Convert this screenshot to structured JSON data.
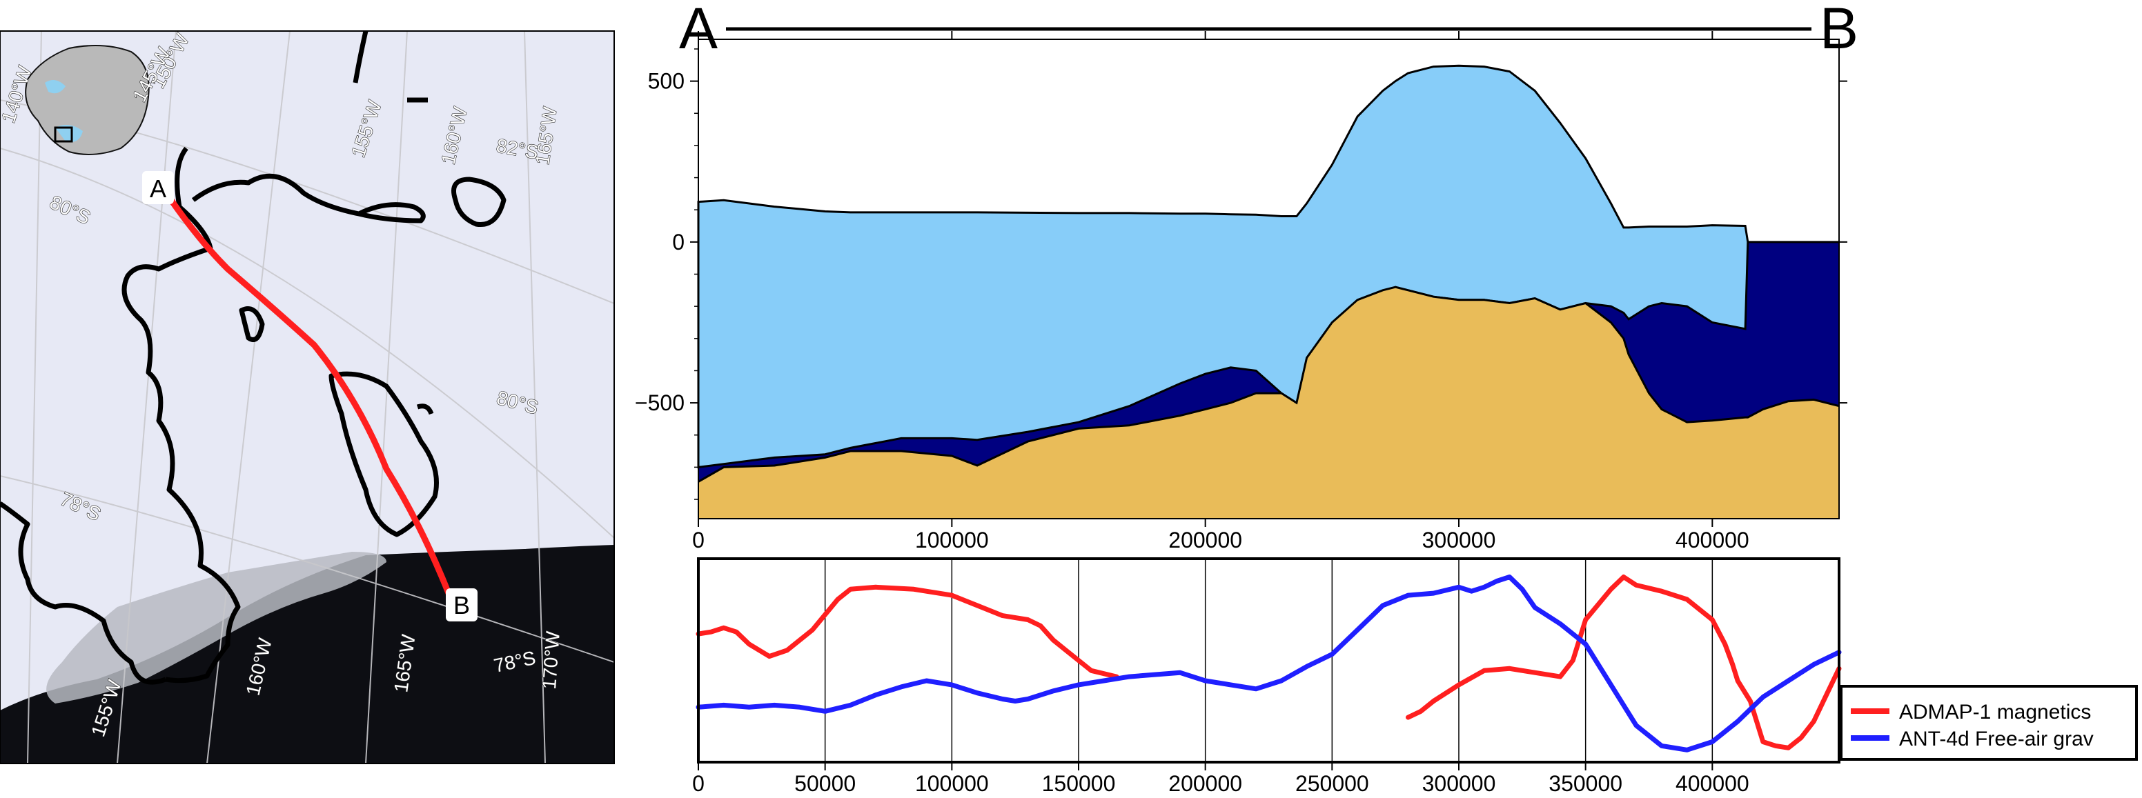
{
  "map": {
    "point_a": "A",
    "point_b": "B",
    "lon_labels": [
      "140°W",
      "145°W",
      "150°W",
      "155°W",
      "160°W",
      "165°W",
      "155°W",
      "160°W",
      "165°W",
      "170°W"
    ],
    "lat_labels": [
      "80°S",
      "80°S",
      "78°S",
      "78°S",
      "82°S"
    ],
    "colors": {
      "ice": "#e7e9f5",
      "ocean": "#0e0f14",
      "profile_line": "#ff1f1f",
      "grounding_line": "#000000",
      "continent": "#b9b9b9",
      "shelf": "#8fd0f0"
    }
  },
  "chart_data": [
    {
      "type": "area",
      "start_label": "A",
      "end_label": "B",
      "x_ticks": [
        0,
        100000,
        200000,
        300000,
        400000
      ],
      "y_ticks": [
        500,
        0,
        -500
      ],
      "xlim": [
        0,
        450000
      ],
      "ylim": [
        -860,
        630
      ],
      "layer_colors": {
        "ice": "#87cdf9",
        "water": "#000080",
        "rock": "#e9bc59"
      },
      "x": [
        0,
        10000,
        30000,
        50000,
        60000,
        80000,
        100000,
        110000,
        130000,
        150000,
        170000,
        190000,
        200000,
        210000,
        220000,
        230000,
        236000,
        240000,
        250000,
        260000,
        270000,
        275000,
        280000,
        290000,
        300000,
        310000,
        320000,
        330000,
        340000,
        350000,
        360000,
        365000,
        367000,
        375000,
        380000,
        390000,
        400000,
        413000,
        414000,
        420000,
        430000,
        440000,
        450000
      ],
      "ice_surface": [
        125,
        130,
        110,
        95,
        92,
        92,
        92,
        92,
        91,
        90,
        90,
        88,
        88,
        86,
        85,
        80,
        80,
        120,
        240,
        390,
        470,
        500,
        525,
        545,
        548,
        545,
        530,
        470,
        370,
        260,
        120,
        45,
        45,
        48,
        48,
        48,
        52,
        50,
        0,
        0,
        0,
        0,
        0
      ],
      "ice_base": [
        -700,
        -690,
        -670,
        -660,
        -640,
        -610,
        -610,
        -615,
        -590,
        -560,
        -510,
        -440,
        -410,
        -390,
        -400,
        -470,
        -500,
        -400,
        -280,
        -200,
        -170,
        -140,
        -150,
        -170,
        -180,
        -180,
        -190,
        -175,
        -210,
        -190,
        -200,
        -220,
        -240,
        -200,
        -190,
        -200,
        -250,
        -270,
        0,
        0,
        0,
        0,
        0
      ],
      "bed": [
        -745,
        -700,
        -695,
        -670,
        -650,
        -650,
        -665,
        -695,
        -620,
        -580,
        -570,
        -540,
        -520,
        -500,
        -470,
        -470,
        -500,
        -360,
        -250,
        -180,
        -150,
        -140,
        -150,
        -170,
        -180,
        -180,
        -190,
        -175,
        -210,
        -190,
        -250,
        -300,
        -350,
        -470,
        -520,
        -560,
        -555,
        -545,
        -545,
        -520,
        -495,
        -490,
        -510
      ]
    },
    {
      "type": "line",
      "x_ticks": [
        0,
        50000,
        100000,
        150000,
        200000,
        250000,
        300000,
        350000,
        400000
      ],
      "xlim": [
        0,
        450000
      ],
      "ylim": [
        0,
        1
      ],
      "legend": "bottom-right",
      "series": [
        {
          "name": "ADMAP-1 magnetics",
          "color": "#ff1f1f",
          "x": [
            0,
            5000,
            10000,
            15000,
            20000,
            28000,
            35000,
            45000,
            55000,
            60000,
            70000,
            85000,
            100000,
            110000,
            120000,
            130000,
            135000,
            140000,
            145000,
            155000,
            165000
          ],
          "y": [
            0.63,
            0.64,
            0.66,
            0.64,
            0.58,
            0.52,
            0.55,
            0.65,
            0.8,
            0.85,
            0.86,
            0.85,
            0.82,
            0.77,
            0.72,
            0.7,
            0.67,
            0.6,
            0.55,
            0.45,
            0.42
          ],
          "x2": [
            280000,
            285000,
            290000,
            300000,
            310000,
            320000,
            330000,
            340000,
            345000,
            350000,
            360000,
            365000,
            370000,
            380000,
            390000,
            400000,
            405000,
            408000,
            410000,
            415000,
            420000,
            425000,
            430000,
            435000,
            440000,
            445000,
            450000
          ],
          "y2": [
            0.22,
            0.25,
            0.3,
            0.38,
            0.45,
            0.46,
            0.44,
            0.42,
            0.5,
            0.7,
            0.85,
            0.91,
            0.87,
            0.84,
            0.8,
            0.7,
            0.58,
            0.48,
            0.4,
            0.3,
            0.1,
            0.08,
            0.07,
            0.12,
            0.2,
            0.33,
            0.46
          ]
        },
        {
          "name": "ANT-4d Free-air grav",
          "color": "#1f1fff",
          "x": [
            0,
            10000,
            20000,
            30000,
            40000,
            50000,
            60000,
            70000,
            80000,
            90000,
            100000,
            110000,
            120000,
            125000,
            130000,
            140000,
            150000,
            160000,
            170000,
            180000,
            190000,
            200000,
            210000,
            220000,
            230000,
            240000,
            250000,
            260000,
            270000,
            280000,
            290000,
            300000,
            305000,
            310000,
            315000,
            320000,
            325000,
            330000,
            340000,
            350000,
            360000,
            370000,
            380000,
            390000,
            400000,
            410000,
            420000,
            430000,
            440000,
            450000
          ],
          "y": [
            0.27,
            0.28,
            0.27,
            0.28,
            0.27,
            0.25,
            0.28,
            0.33,
            0.37,
            0.4,
            0.38,
            0.34,
            0.31,
            0.3,
            0.31,
            0.35,
            0.38,
            0.4,
            0.42,
            0.43,
            0.44,
            0.4,
            0.38,
            0.36,
            0.4,
            0.47,
            0.53,
            0.65,
            0.77,
            0.82,
            0.83,
            0.86,
            0.84,
            0.86,
            0.89,
            0.91,
            0.85,
            0.76,
            0.68,
            0.58,
            0.38,
            0.18,
            0.08,
            0.06,
            0.1,
            0.2,
            0.32,
            0.4,
            0.48,
            0.54
          ]
        }
      ]
    }
  ]
}
